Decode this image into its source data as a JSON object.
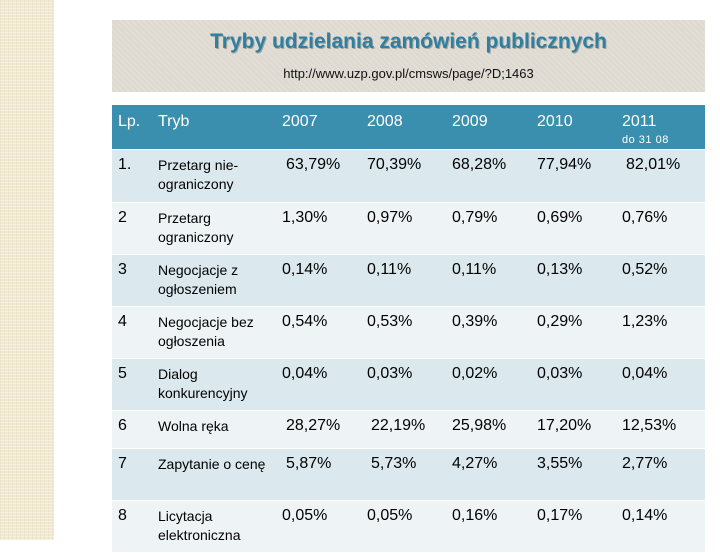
{
  "title": "Tryby udzielania zamówień publicznych",
  "url": "http://www.uzp.gov.pl/cmsws/page/?D;1463",
  "columns": {
    "lp": "Lp.",
    "tryb": "Tryb",
    "y2007": "2007",
    "y2008": "2008",
    "y2009": "2009",
    "y2010": "2010",
    "y2011": "2011",
    "y2011_note": "do 31 08"
  },
  "rows": [
    {
      "lp": "1.",
      "tryb": "Przetarg nie-ograniczony",
      "v2007": "63,79%",
      "v2008": "70,39%",
      "v2009": "68,28%",
      "v2010": "77,94%",
      "v2011": "82,01%"
    },
    {
      "lp": "2",
      "tryb": "Przetarg ograniczony",
      "v2007": "1,30%",
      "v2008": "0,97%",
      "v2009": "0,79%",
      "v2010": "0,69%",
      "v2011": "0,76%"
    },
    {
      "lp": "3",
      "tryb": "Negocjacje z ogłoszeniem",
      "v2007": "0,14%",
      "v2008": "0,11%",
      "v2009": "0,11%",
      "v2010": "0,13%",
      "v2011": "0,52%"
    },
    {
      "lp": "4",
      "tryb": "Negocjacje bez ogłoszenia",
      "v2007": "0,54%",
      "v2008": "0,53%",
      "v2009": "0,39%",
      "v2010": "0,29%",
      "v2011": "1,23%"
    },
    {
      "lp": "5",
      "tryb": "Dialog konkurencyjny",
      "v2007": "0,04%",
      "v2008": "0,03%",
      "v2009": "0,02%",
      "v2010": "0,03%",
      "v2011": "0,04%"
    },
    {
      "lp": "6",
      "tryb": "Wolna ręka",
      "v2007": "28,27%",
      "v2008": "22,19%",
      "v2009": "25,98%",
      "v2010": "17,20%",
      "v2011": "12,53%"
    },
    {
      "lp": "7",
      "tryb": "Zapytanie o cenę",
      "v2007": "5,87%",
      "v2008": "5,73%",
      "v2009": "4,27%",
      "v2010": "3,55%",
      "v2011": "2,77%"
    },
    {
      "lp": "8",
      "tryb": "Licytacja elektroniczna",
      "v2007": "0,05%",
      "v2008": "0,05%",
      "v2009": "0,16%",
      "v2010": "0,17%",
      "v2011": "0,14%"
    }
  ]
}
